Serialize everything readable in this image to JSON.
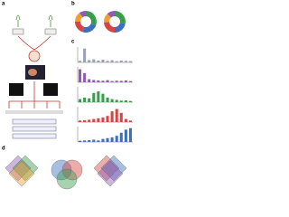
{
  "panel_labels": [
    "a",
    "b",
    "c",
    "d"
  ],
  "donuts": [
    {
      "values": [
        30,
        25,
        20,
        15,
        10
      ],
      "colors": [
        "#3a9d4a",
        "#3b6fc0",
        "#d64541",
        "#f0a030",
        "#8e5bb5"
      ]
    },
    {
      "values": [
        28,
        22,
        24,
        14,
        12
      ],
      "colors": [
        "#3a9d4a",
        "#3b6fc0",
        "#d64541",
        "#f0a030",
        "#8e5bb5"
      ]
    }
  ],
  "bar_plots": [
    {
      "color": "#9aa0b8",
      "ylim": [
        0,
        100
      ],
      "values": [
        10,
        90,
        15,
        20,
        12,
        18,
        10,
        14,
        8,
        12,
        10,
        9
      ]
    },
    {
      "color": "#8e5bb5",
      "ylim": [
        0,
        100
      ],
      "values": [
        85,
        60,
        20,
        15,
        12,
        10,
        14,
        8,
        10,
        9,
        12,
        8
      ]
    },
    {
      "color": "#3a9d4a",
      "ylim": [
        0,
        100
      ],
      "values": [
        20,
        30,
        25,
        60,
        70,
        55,
        30,
        20,
        15,
        10,
        12,
        8
      ]
    },
    {
      "color": "#d64541",
      "ylim": [
        0,
        100
      ],
      "values": [
        10,
        12,
        15,
        20,
        25,
        30,
        40,
        70,
        85,
        60,
        20,
        10
      ]
    },
    {
      "color": "#3b6fc0",
      "ylim": [
        0,
        100
      ],
      "values": [
        8,
        10,
        12,
        15,
        10,
        20,
        25,
        30,
        40,
        60,
        80,
        90
      ]
    }
  ]
}
